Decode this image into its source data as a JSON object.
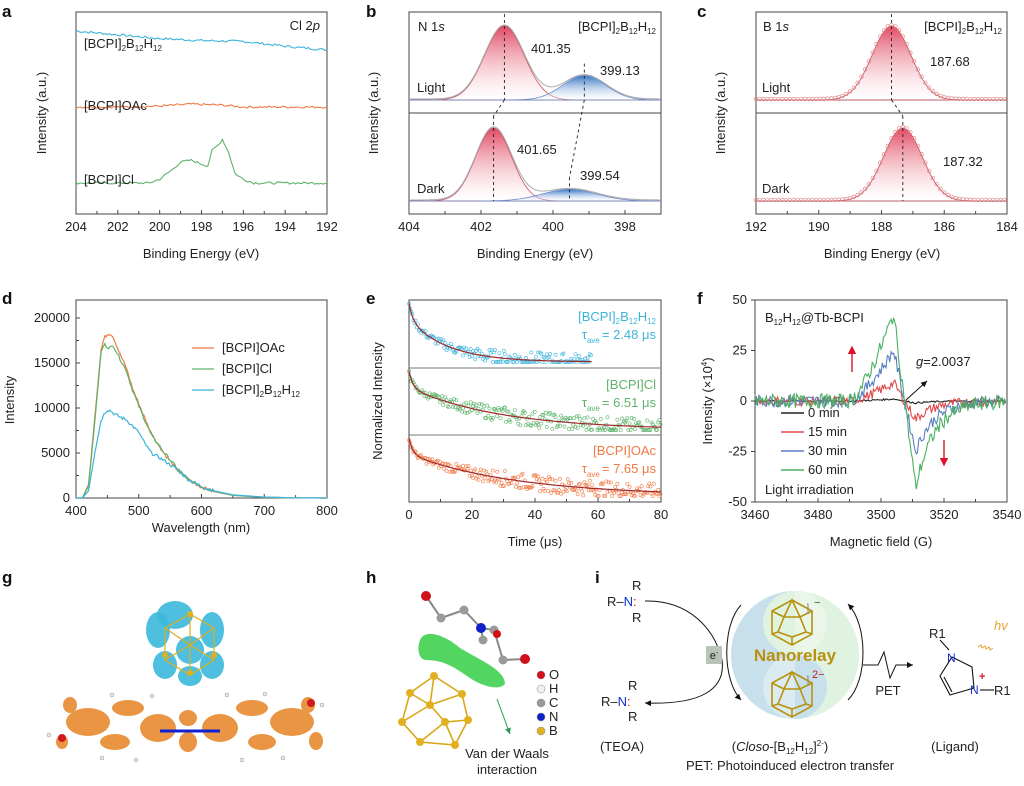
{
  "figure": {
    "panel_labels": {
      "a": "a",
      "b": "b",
      "c": "c",
      "d": "d",
      "e": "e",
      "f": "f",
      "g": "g",
      "h": "h",
      "i": "i"
    }
  },
  "colors": {
    "blue": "#3cb4dc",
    "orange": "#f07a45",
    "green": "#5db36a",
    "red_peak": "#e0405a",
    "blue_peak": "#2a6cc0",
    "epr_0": "#222222",
    "epr_15": "#e04848",
    "epr_30": "#5a7fc0",
    "epr_60": "#48b060",
    "gold": "#b8920e",
    "arrow_red": "#e0102a"
  },
  "chart_data": [
    {
      "id": "a",
      "type": "line",
      "title": "Cl 2p",
      "title_main": "Cl 2",
      "title_italic": "p",
      "xlabel": "Binding Energy (eV)",
      "ylabel": "Intensity (a.u.)",
      "xlim": [
        204,
        192
      ],
      "xticks": [
        204,
        202,
        200,
        198,
        196,
        194,
        192
      ],
      "series": [
        {
          "name": "[BCPI]2B12H12",
          "label_main": "[BCPI]",
          "label_sub1": "2",
          "label_mid": "B",
          "label_sub2": "12",
          "label_mid2": "H",
          "label_sub3": "12",
          "color_key": "blue",
          "x": [
            204,
            202,
            200,
            198,
            196,
            194,
            192
          ],
          "y": [
            0.9,
            0.88,
            0.86,
            0.85,
            0.845,
            0.82,
            0.8
          ]
        },
        {
          "name": "[BCPI]OAc",
          "color_key": "orange",
          "x": [
            204,
            202,
            200,
            198.5,
            197,
            196,
            194,
            192
          ],
          "y": [
            0.5,
            0.5,
            0.505,
            0.515,
            0.51,
            0.5,
            0.5,
            0.5
          ]
        },
        {
          "name": "[BCPI]Cl",
          "color_key": "green",
          "x": [
            204,
            202,
            200.5,
            200,
            199.4,
            199,
            198.5,
            198,
            197.7,
            197.5,
            197.2,
            197,
            196.7,
            196.4,
            196,
            195.5,
            194,
            192
          ],
          "y": [
            0.1,
            0.1,
            0.1,
            0.12,
            0.17,
            0.21,
            0.22,
            0.2,
            0.19,
            0.27,
            0.3,
            0.33,
            0.26,
            0.15,
            0.12,
            0.1,
            0.1,
            0.1
          ]
        }
      ]
    },
    {
      "id": "b",
      "type": "area",
      "title": "N 1s",
      "title_main": "N 1",
      "title_italic": "s",
      "compound": "[BCPI]2B12H12",
      "xlabel": "Binding Energy (eV)",
      "ylabel": "Intensity (a.u.)",
      "xlim": [
        404,
        397
      ],
      "xticks": [
        404,
        402,
        400,
        398
      ],
      "panels": [
        {
          "condition": "Light",
          "peaks": [
            {
              "center": 401.35,
              "label": "401.35",
              "height": 1.0,
              "sigma": 0.55,
              "color_key": "red_peak"
            },
            {
              "center": 399.13,
              "label": "399.13",
              "height": 0.33,
              "sigma": 0.6,
              "color_key": "blue_peak"
            }
          ]
        },
        {
          "condition": "Dark",
          "peaks": [
            {
              "center": 401.65,
              "label": "401.65",
              "height": 1.0,
              "sigma": 0.5,
              "color_key": "red_peak"
            },
            {
              "center": 399.54,
              "label": "399.54",
              "height": 0.16,
              "sigma": 0.75,
              "color_key": "blue_peak"
            }
          ]
        }
      ]
    },
    {
      "id": "c",
      "type": "area",
      "title": "B 1s",
      "title_main": "B 1",
      "title_italic": "s",
      "compound": "[BCPI]2B12H12",
      "xlabel": "Binding Energy (eV)",
      "ylabel": "Intensity (a.u.)",
      "xlim": [
        192,
        184
      ],
      "xticks": [
        192,
        190,
        188,
        186,
        184
      ],
      "panels": [
        {
          "condition": "Light",
          "peaks": [
            {
              "center": 187.68,
              "label": "187.68",
              "height": 1.0,
              "sigma": 0.62,
              "color_key": "red_peak"
            }
          ]
        },
        {
          "condition": "Dark",
          "peaks": [
            {
              "center": 187.32,
              "label": "187.32",
              "height": 1.0,
              "sigma": 0.62,
              "color_key": "red_peak"
            }
          ]
        }
      ]
    },
    {
      "id": "d",
      "type": "line",
      "xlabel": "Wavelength (nm)",
      "ylabel": "Intensity",
      "xlim": [
        400,
        800
      ],
      "ylim": [
        0,
        22000
      ],
      "xticks": [
        400,
        500,
        600,
        700,
        800
      ],
      "yticks": [
        0,
        5000,
        10000,
        15000,
        20000
      ],
      "legend_position": "top-right",
      "series": [
        {
          "name": "[BCPI]OAc",
          "color_key": "orange",
          "x": [
            400,
            410,
            420,
            430,
            440,
            445,
            450,
            455,
            460,
            470,
            480,
            490,
            500,
            510,
            520,
            540,
            560,
            580,
            600,
            620,
            650,
            700,
            750,
            800
          ],
          "y": [
            0,
            0,
            1500,
            9000,
            16500,
            17800,
            18200,
            18300,
            17800,
            16000,
            14500,
            12200,
            10500,
            8800,
            7200,
            5000,
            3200,
            2000,
            1200,
            700,
            300,
            80,
            20,
            0
          ]
        },
        {
          "name": "[BCPI]Cl",
          "color_key": "green",
          "x": [
            400,
            410,
            420,
            430,
            440,
            445,
            450,
            455,
            460,
            470,
            480,
            490,
            500,
            510,
            520,
            540,
            560,
            580,
            600,
            620,
            650,
            700,
            750,
            800
          ],
          "y": [
            0,
            0,
            1300,
            8500,
            16200,
            17100,
            16800,
            16700,
            16900,
            15500,
            14200,
            12000,
            10200,
            8600,
            7000,
            5100,
            3400,
            2000,
            1300,
            750,
            300,
            80,
            20,
            0
          ]
        },
        {
          "name": "[BCPI]2B12H12",
          "color_key": "blue",
          "x": [
            400,
            410,
            420,
            430,
            440,
            445,
            450,
            455,
            460,
            470,
            480,
            490,
            500,
            510,
            520,
            540,
            560,
            580,
            600,
            620,
            650,
            700,
            750,
            800
          ],
          "y": [
            0,
            0,
            800,
            5000,
            8600,
            9400,
            9800,
            9700,
            9400,
            9000,
            8700,
            8000,
            7300,
            6000,
            5000,
            4200,
            3200,
            2000,
            1300,
            800,
            350,
            100,
            20,
            0
          ]
        }
      ]
    },
    {
      "id": "e",
      "type": "scatter",
      "xlabel": "Time (μs)",
      "ylabel": "Normalized Intensity",
      "xlim": [
        0,
        80
      ],
      "xticks": [
        0,
        20,
        40,
        60,
        80
      ],
      "series": [
        {
          "name": "[BCPI]2B12H12",
          "tau_label": "= 2.48 μs",
          "tau": 2.48,
          "color_key": "blue",
          "xmax": 58
        },
        {
          "name": "[BCPI]Cl",
          "tau_label": "= 6.51 μs",
          "tau": 6.51,
          "color_key": "green",
          "xmax": 80
        },
        {
          "name": "[BCPI]OAc",
          "tau_label": "= 7.65 μs",
          "tau": 7.65,
          "color_key": "orange",
          "xmax": 80
        }
      ],
      "fit_color": "#a0282a"
    },
    {
      "id": "f",
      "type": "line",
      "title": "B12H12@Tb-BCPI",
      "xlabel": "Magnetic field (G)",
      "ylabel": "Intensity (×10⁴)",
      "xlim": [
        3460,
        3540
      ],
      "ylim": [
        -50,
        50
      ],
      "xticks": [
        3460,
        3480,
        3500,
        3520,
        3540
      ],
      "yticks": [
        50,
        25,
        0,
        -25,
        -50
      ],
      "annotation": "=2.0037",
      "annotation_g": "g",
      "footer": "Light irradiation",
      "legend_position": "bottom-left",
      "series": [
        {
          "name": "0 min",
          "color_key": "epr_0",
          "amp": 1.0
        },
        {
          "name": "15 min",
          "color_key": "epr_15",
          "amp": 9.0
        },
        {
          "name": "30 min",
          "color_key": "epr_30",
          "amp": 25.0
        },
        {
          "name": "60 min",
          "color_key": "epr_60",
          "amp": 43.0
        }
      ]
    }
  ],
  "panel_g": {
    "description": "DFT orbital isosurface: B12H12 cluster (cyan) above BCPI ligand (orange)"
  },
  "panel_h": {
    "legend": [
      {
        "element": "O",
        "color": "#d0101a"
      },
      {
        "element": "H",
        "color": "#f0f0f0"
      },
      {
        "element": "C",
        "color": "#9a9a9a"
      },
      {
        "element": "N",
        "color": "#1020c8"
      },
      {
        "element": "B",
        "color": "#e0b020"
      }
    ],
    "annotation_line1": "Van der Waals",
    "annotation_line2": "interaction"
  },
  "panel_i": {
    "teoa_label": "(TEOA)",
    "closo_label_pre": "(",
    "closo_italic": "Closo",
    "closo_label_post": "-[B12H12]2-)",
    "ligand_label": "(Ligand)",
    "center_label": "Nanorelay",
    "electron": "e",
    "charge_top": "−",
    "charge_bottom": "2−",
    "pet": "PET",
    "hv": "hv",
    "footer": "PET: Photoinduced electron transfer",
    "r": "R",
    "n": "N",
    "r1": "R1"
  }
}
